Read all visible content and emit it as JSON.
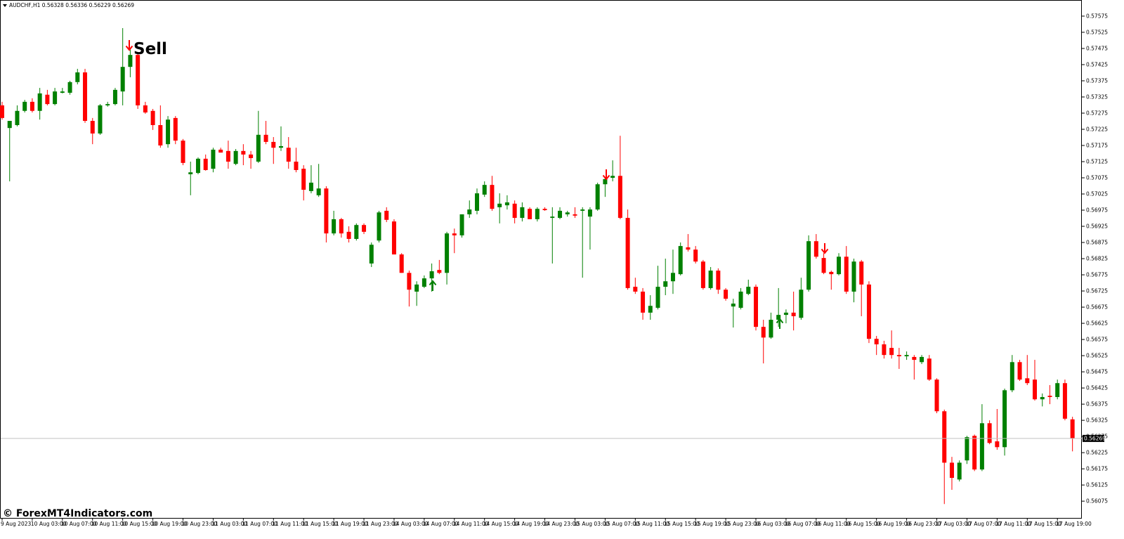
{
  "chart_data": {
    "type": "candlestick",
    "title": "AUDCHF,H1",
    "annotation": "Sell",
    "watermark": "© ForexMT4Indicators.com",
    "up_color": "#008000",
    "down_color": "#ff0000",
    "ylim": [
      0.56021,
      0.57614
    ],
    "yticks": [
      0.56075,
      0.56125,
      0.56175,
      0.56225,
      0.56275,
      0.56325,
      0.56375,
      0.56425,
      0.56475,
      0.56525,
      0.56575,
      0.56625,
      0.56675,
      0.56725,
      0.56775,
      0.56825,
      0.56875,
      0.56925,
      0.56975,
      0.57025,
      0.57075,
      0.57125,
      0.57175,
      0.57225,
      0.57275,
      0.57325,
      0.57375,
      0.57425,
      0.57475,
      0.57525,
      0.57575
    ],
    "categories": [
      "9 Aug 2023",
      null,
      null,
      null,
      "10 Aug 03:00",
      null,
      null,
      null,
      "10 Aug 07:00",
      null,
      null,
      null,
      "10 Aug 11:00",
      null,
      null,
      null,
      "10 Aug 15:00",
      null,
      null,
      null,
      "10 Aug 19:00",
      null,
      null,
      null,
      "10 Aug 23:00",
      null,
      null,
      null,
      "11 Aug 03:00",
      null,
      null,
      null,
      "11 Aug 07:00",
      null,
      null,
      null,
      "11 Aug 11:00",
      null,
      null,
      null,
      "11 Aug 15:00",
      null,
      null,
      null,
      "11 Aug 19:00",
      null,
      null,
      null,
      "11 Aug 23:00",
      null,
      null,
      null,
      "14 Aug 03:00",
      null,
      null,
      null,
      "14 Aug 07:00",
      null,
      null,
      null,
      "14 Aug 11:00",
      null,
      null,
      null,
      "14 Aug 15:00",
      null,
      null,
      null,
      "14 Aug 19:00",
      null,
      null,
      null,
      "14 Aug 23:00",
      null,
      null,
      null,
      "15 Aug 03:00",
      null,
      null,
      null,
      "15 Aug 07:00",
      null,
      null,
      null,
      "15 Aug 11:00",
      null,
      null,
      null,
      "15 Aug 15:00",
      null,
      null,
      null,
      "15 Aug 19:00",
      null,
      null,
      null,
      "15 Aug 23:00",
      null,
      null,
      null,
      "16 Aug 03:00",
      null,
      null,
      null,
      "16 Aug 07:00",
      null,
      null,
      null,
      "16 Aug 11:00",
      null,
      null,
      null,
      "16 Aug 15:00",
      null,
      null,
      null,
      "16 Aug 19:00",
      null,
      null,
      null,
      "16 Aug 23:00",
      null,
      null,
      null,
      "17 Aug 03:00",
      null,
      null,
      null,
      "17 Aug 07:00",
      null,
      null,
      null,
      "17 Aug 11:00",
      null,
      null,
      null,
      "17 Aug 15:00",
      null,
      null,
      null,
      "17 Aug 19:00",
      null,
      null
    ],
    "open": [
      0.57299,
      0.57229,
      0.57238,
      0.57282,
      0.5731,
      0.57282,
      0.57332,
      0.57303,
      0.57338,
      0.57338,
      0.57371,
      0.57401,
      0.57251,
      0.57212,
      0.57299,
      0.57303,
      0.57342,
      0.57418,
      0.57455,
      0.57299,
      0.57282,
      0.57238,
      0.57179,
      0.5726,
      0.5719,
      0.57086,
      0.5709,
      0.57134,
      0.57103,
      0.57162,
      0.57158,
      0.57118,
      0.57158,
      0.57147,
      0.57125,
      0.57208,
      0.57186,
      0.57168,
      0.57168,
      0.57125,
      0.57103,
      0.57034,
      0.57021,
      0.57042,
      0.56903,
      0.56947,
      0.56908,
      0.56886,
      0.56929,
      0.5681,
      0.56881,
      0.56973,
      0.5694,
      0.56838,
      0.56781,
      0.56723,
      0.56738,
      0.56764,
      0.5679,
      0.56781,
      0.56903,
      0.56897,
      0.56962,
      0.56973,
      0.57023,
      0.57053,
      0.56984,
      0.5699,
      0.56995,
      0.56951,
      0.56979,
      0.56947,
      0.56979,
      0.56951,
      0.56951,
      0.56962,
      0.56962,
      0.56973,
      0.56955,
      0.56977,
      0.57055,
      0.57075,
      0.57081,
      0.56951,
      0.56738,
      0.56723,
      0.56658,
      0.56673,
      0.56738,
      0.56755,
      0.56777,
      0.5686,
      0.56853,
      0.56816,
      0.56734,
      0.56788,
      0.56729,
      0.56677,
      0.56673,
      0.56716,
      0.56738,
      0.56614,
      0.56581,
      0.56636,
      0.56651,
      0.56658,
      0.56642,
      0.56729,
      0.56879,
      0.56827,
      0.56784,
      0.56777,
      0.56831,
      0.56723,
      0.56816,
      0.56745,
      0.56577,
      0.5656,
      0.56549,
      0.56527,
      0.56523,
      0.56521,
      0.56505,
      0.56516,
      0.56451,
      0.56353,
      0.56194,
      0.56142,
      0.56201,
      0.56277,
      0.56173,
      0.56316,
      0.5626,
      0.56242,
      0.56418,
      0.56505,
      0.56455,
      0.56451,
      0.5639,
      0.56401,
      0.56397,
      0.5644,
      0.56328
    ],
    "high": [
      0.5731,
      0.57251,
      0.57299,
      0.57316,
      0.57321,
      0.57353,
      0.57347,
      0.57353,
      0.57353,
      0.57375,
      0.57412,
      0.57412,
      0.5726,
      0.57303,
      0.5731,
      0.57353,
      0.57538,
      0.57473,
      0.57462,
      0.5731,
      0.57288,
      0.57299,
      0.57266,
      0.57266,
      0.57195,
      0.57125,
      0.57138,
      0.57147,
      0.57168,
      0.57168,
      0.5719,
      0.57164,
      0.57179,
      0.57158,
      0.57282,
      0.57251,
      0.57201,
      0.57234,
      0.57201,
      0.57168,
      0.57114,
      0.57114,
      0.57118,
      0.57049,
      0.56973,
      0.56951,
      0.56925,
      0.56934,
      0.56934,
      0.56875,
      0.56973,
      0.56984,
      0.56947,
      0.56842,
      0.56788,
      0.56755,
      0.56773,
      0.5681,
      0.56821,
      0.56908,
      0.56918,
      0.56962,
      0.57005,
      0.57042,
      0.57064,
      0.57081,
      0.57027,
      0.57021,
      0.57005,
      0.56999,
      0.56984,
      0.56984,
      0.56984,
      0.56984,
      0.56984,
      0.56973,
      0.56984,
      0.56984,
      0.56984,
      0.5706,
      0.57077,
      0.57129,
      0.57205,
      0.56977,
      0.56766,
      0.56734,
      0.56712,
      0.56803,
      0.56825,
      0.56853,
      0.56875,
      0.56901,
      0.56864,
      0.56821,
      0.56799,
      0.56795,
      0.56734,
      0.56701,
      0.56734,
      0.5676,
      0.56745,
      0.56636,
      0.56658,
      0.56734,
      0.56668,
      0.56723,
      0.56766,
      0.56897,
      0.56901,
      0.56842,
      0.56788,
      0.56842,
      0.56864,
      0.56825,
      0.56821,
      0.56755,
      0.56586,
      0.56571,
      0.56603,
      0.56549,
      0.56538,
      0.56527,
      0.56527,
      0.56527,
      0.56455,
      0.56358,
      0.56212,
      0.56201,
      0.56277,
      0.56281,
      0.56375,
      0.56325,
      0.5636,
      0.56423,
      0.56527,
      0.56512,
      0.56527,
      0.56512,
      0.56408,
      0.56434,
      0.56451,
      0.56451,
      0.56336
    ],
    "low": [
      0.57255,
      0.57064,
      0.57234,
      0.57277,
      0.57277,
      0.57255,
      0.57299,
      0.57299,
      0.57336,
      0.57332,
      0.57364,
      0.57245,
      0.57179,
      0.57208,
      0.57295,
      0.57299,
      0.57299,
      0.57386,
      0.57288,
      0.57273,
      0.57223,
      0.57168,
      0.57168,
      0.57179,
      0.57114,
      0.57021,
      0.57086,
      0.57097,
      0.57092,
      0.57153,
      0.57103,
      0.57114,
      0.57114,
      0.57103,
      0.57121,
      0.57179,
      0.57118,
      0.57158,
      0.57103,
      0.57092,
      0.57005,
      0.57027,
      0.57016,
      0.56875,
      0.56897,
      0.5689,
      0.56875,
      0.56881,
      0.56901,
      0.56799,
      0.56875,
      0.56938,
      0.56838,
      0.56781,
      0.56677,
      0.56679,
      0.56734,
      0.56723,
      0.56777,
      0.56745,
      0.56842,
      0.5689,
      0.56951,
      0.56962,
      0.57016,
      0.56973,
      0.56934,
      0.56977,
      0.56934,
      0.5694,
      0.56947,
      0.5694,
      0.56973,
      0.5681,
      0.56947,
      0.56955,
      0.56951,
      0.56766,
      0.56853,
      0.56973,
      0.57016,
      0.57064,
      0.56947,
      0.56729,
      0.56716,
      0.56636,
      0.56636,
      0.56668,
      0.56712,
      0.56716,
      0.56773,
      0.56847,
      0.5681,
      0.56729,
      0.56729,
      0.56716,
      0.56695,
      0.56612,
      0.56668,
      0.56712,
      0.56603,
      0.56501,
      0.56577,
      0.56614,
      0.56625,
      0.56603,
      0.56636,
      0.56723,
      0.56825,
      0.56777,
      0.56729,
      0.56773,
      0.56716,
      0.5669,
      0.56647,
      0.56564,
      0.56527,
      0.56516,
      0.56516,
      0.56484,
      0.56512,
      0.56451,
      0.56499,
      0.56447,
      0.56347,
      0.56066,
      0.5611,
      0.56136,
      0.5619,
      0.56168,
      0.56168,
      0.56251,
      0.56234,
      0.56216,
      0.56412,
      0.56447,
      0.56434,
      0.56386,
      0.56368,
      0.56375,
      0.5639,
      0.56325,
      0.56229
    ],
    "close": [
      0.5726,
      0.57251,
      0.57282,
      0.5731,
      0.57282,
      0.57336,
      0.57303,
      0.57342,
      0.57342,
      0.57371,
      0.57401,
      0.57251,
      0.57212,
      0.57299,
      0.57303,
      0.57347,
      0.57418,
      0.57455,
      0.57299,
      0.57277,
      0.57238,
      0.57175,
      0.57255,
      0.5719,
      0.57121,
      0.57092,
      0.57134,
      0.57099,
      0.57162,
      0.57153,
      0.57125,
      0.57158,
      0.57147,
      0.57136,
      0.57208,
      0.57186,
      0.57168,
      0.57173,
      0.57125,
      0.57099,
      0.57038,
      0.5706,
      0.57042,
      0.56903,
      0.56947,
      0.56903,
      0.56886,
      0.56929,
      0.56908,
      0.56868,
      0.56968,
      0.56945,
      0.56838,
      0.56781,
      0.56729,
      0.56745,
      0.56764,
      0.56786,
      0.56781,
      0.56903,
      0.56897,
      0.56962,
      0.56977,
      0.57027,
      0.57053,
      0.56979,
      0.56995,
      0.56999,
      0.56951,
      0.56984,
      0.56947,
      0.56979,
      0.56975,
      0.56955,
      0.56973,
      0.56968,
      0.56958,
      0.56977,
      0.56977,
      0.57055,
      0.57071,
      0.57081,
      0.56951,
      0.56734,
      0.56723,
      0.56658,
      0.56679,
      0.56738,
      0.56755,
      0.56781,
      0.56864,
      0.56853,
      0.56816,
      0.56734,
      0.56788,
      0.56729,
      0.56701,
      0.56686,
      0.56723,
      0.56738,
      0.56614,
      0.56581,
      0.56636,
      0.56651,
      0.56658,
      0.56647,
      0.56729,
      0.56879,
      0.56831,
      0.56781,
      0.56777,
      0.56831,
      0.56723,
      0.56816,
      0.56745,
      0.56577,
      0.5656,
      0.56527,
      0.56527,
      0.56523,
      0.56527,
      0.56512,
      0.56521,
      0.56451,
      0.56353,
      0.56194,
      0.56147,
      0.56194,
      0.56273,
      0.56173,
      0.56316,
      0.56255,
      0.56242,
      0.56418,
      0.56505,
      0.56451,
      0.5644,
      0.5639,
      0.56397,
      0.56397,
      0.5644,
      0.5633,
      0.56269
    ]
  }
}
